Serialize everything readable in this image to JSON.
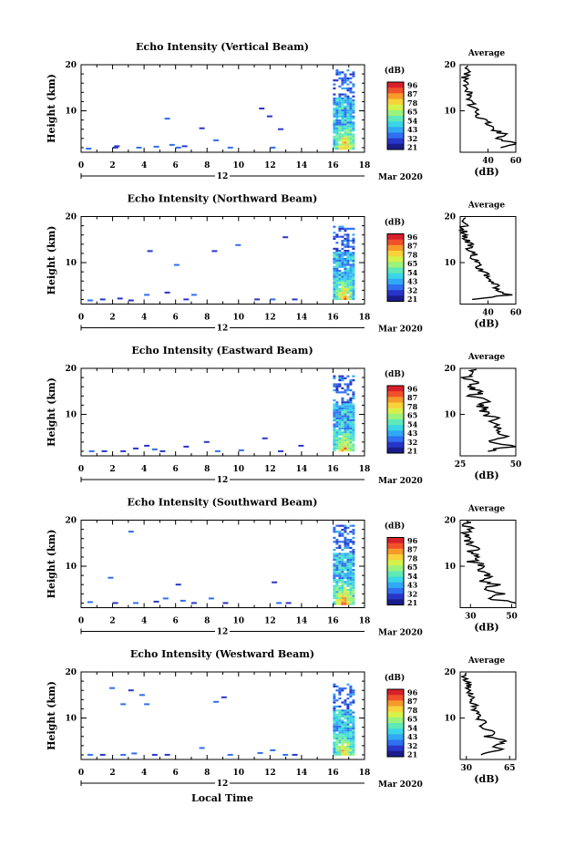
{
  "figure": {
    "xlabel": "Local Time",
    "colors": {
      "colormap": [
        "#1a1d8c",
        "#2736c9",
        "#2f6ff0",
        "#30a8f5",
        "#38d6e6",
        "#5fe9b8",
        "#9bf27d",
        "#d6f24a",
        "#f7d23a",
        "#f79a2a",
        "#f0502a",
        "#d8202a"
      ]
    }
  },
  "chart_data": [
    {
      "type": "heatmap",
      "title": "Echo Intensity (Vertical Beam)",
      "ylabel": "Height (km)",
      "xlim": [
        0,
        18
      ],
      "ylim": [
        1,
        20
      ],
      "xticks": [
        "0",
        "2",
        "4",
        "6",
        "8",
        "10",
        "12",
        "14",
        "16",
        "18"
      ],
      "yticks": [
        {
          "v": 20,
          "label": "20"
        },
        {
          "v": 10,
          "label": "10"
        }
      ],
      "date_label": "12",
      "month_label": "Mar 2020",
      "colorbar": {
        "unit": "(dB)",
        "labels": [
          "96",
          "87",
          "78",
          "65",
          "54",
          "43",
          "32",
          "21"
        ]
      },
      "data_block": {
        "x": [
          16.0,
          17.3
        ],
        "y": [
          2.0,
          19.0
        ]
      },
      "scatter_echoes": [
        [
          0.3,
          1.8
        ],
        [
          2.0,
          2.0
        ],
        [
          2.1,
          2.3
        ],
        [
          3.5,
          2.0
        ],
        [
          4.6,
          2.2
        ],
        [
          5.3,
          8.3
        ],
        [
          5.6,
          2.6
        ],
        [
          6.0,
          2.0
        ],
        [
          6.4,
          2.3
        ],
        [
          7.5,
          6.2
        ],
        [
          8.4,
          3.6
        ],
        [
          9.3,
          2.0
        ],
        [
          11.3,
          10.5
        ],
        [
          11.8,
          8.8
        ],
        [
          12.0,
          2.0
        ],
        [
          12.5,
          6.0
        ]
      ],
      "profile": {
        "title": "Average",
        "xlabel": "(dB)",
        "xlim": [
          20,
          60
        ],
        "ylim": [
          1,
          20
        ],
        "xticks": [
          {
            "v": 40,
            "label": "40"
          },
          {
            "v": 60,
            "label": "60"
          }
        ],
        "yticks": [
          {
            "v": 20,
            "label": "20"
          },
          {
            "v": 10,
            "label": "10"
          }
        ],
        "heights": [
          2.0,
          3.0,
          4.0,
          5.0,
          6.0,
          7.0,
          8.0,
          9.0,
          10.0,
          11.0,
          12.0,
          13.0,
          14.0,
          15.0,
          16.0,
          17.0,
          18.0,
          19.0,
          20.0
        ],
        "values": [
          52,
          58,
          46,
          51,
          43,
          40,
          38,
          30,
          32,
          27,
          29,
          25,
          27,
          24,
          26,
          23,
          25,
          24,
          27
        ]
      }
    },
    {
      "type": "heatmap",
      "title": "Echo Intensity (Northward Beam)",
      "ylabel": "Height (km)",
      "xlim": [
        0,
        18
      ],
      "ylim": [
        1,
        20
      ],
      "xticks": [
        "0",
        "2",
        "4",
        "6",
        "8",
        "10",
        "12",
        "14",
        "16",
        "18"
      ],
      "yticks": [
        {
          "v": 20,
          "label": "20"
        },
        {
          "v": 10,
          "label": "10"
        }
      ],
      "date_label": "12",
      "month_label": "Mar 2020",
      "colorbar": {
        "unit": "(dB)",
        "labels": [
          "96",
          "87",
          "78",
          "65",
          "54",
          "43",
          "32",
          "21"
        ]
      },
      "data_block": {
        "x": [
          16.0,
          17.3
        ],
        "y": [
          2.0,
          18.0
        ]
      },
      "scatter_echoes": [
        [
          0.4,
          1.8
        ],
        [
          1.2,
          2.0
        ],
        [
          2.3,
          2.2
        ],
        [
          3.0,
          1.8
        ],
        [
          4.0,
          3.0
        ],
        [
          4.2,
          12.5
        ],
        [
          5.3,
          3.5
        ],
        [
          5.9,
          9.5
        ],
        [
          6.5,
          2.0
        ],
        [
          7.0,
          3.0
        ],
        [
          8.3,
          12.5
        ],
        [
          9.8,
          13.8
        ],
        [
          11.0,
          2.0
        ],
        [
          12.0,
          2.0
        ],
        [
          12.8,
          15.5
        ],
        [
          13.4,
          2.0
        ]
      ],
      "profile": {
        "title": "Average",
        "xlabel": "(dB)",
        "xlim": [
          20,
          60
        ],
        "ylim": [
          1,
          20
        ],
        "xticks": [
          {
            "v": 40,
            "label": "40"
          },
          {
            "v": 60,
            "label": "60"
          }
        ],
        "yticks": [
          {
            "v": 20,
            "label": "20"
          },
          {
            "v": 10,
            "label": "10"
          }
        ],
        "heights": [
          2.0,
          3.0,
          4.0,
          5.0,
          6.0,
          7.0,
          8.0,
          9.0,
          10.0,
          11.0,
          12.0,
          13.0,
          14.0,
          15.0,
          16.0,
          17.0,
          18.0,
          19.0,
          20.0
        ],
        "values": [
          30,
          55,
          44,
          48,
          40,
          41,
          36,
          33,
          32,
          30,
          31,
          27,
          27,
          25,
          24,
          22,
          23,
          22,
          24
        ]
      }
    },
    {
      "type": "heatmap",
      "title": "Echo Intensity (Eastward Beam)",
      "ylabel": "Height (km)",
      "xlim": [
        0,
        18
      ],
      "ylim": [
        1,
        20
      ],
      "xticks": [
        "0",
        "2",
        "4",
        "6",
        "8",
        "10",
        "12",
        "14",
        "16",
        "18"
      ],
      "yticks": [
        {
          "v": 20,
          "label": "20"
        },
        {
          "v": 10,
          "label": "10"
        }
      ],
      "date_label": "12",
      "month_label": "Mar 2020",
      "colorbar": {
        "unit": "(dB)",
        "labels": [
          "96",
          "87",
          "78",
          "65",
          "54",
          "43",
          "32",
          "21"
        ]
      },
      "data_block": {
        "x": [
          16.0,
          17.3
        ],
        "y": [
          2.0,
          18.5
        ]
      },
      "scatter_echoes": [
        [
          0.5,
          2.0
        ],
        [
          1.3,
          2.0
        ],
        [
          2.5,
          2.0
        ],
        [
          3.3,
          2.6
        ],
        [
          4.0,
          3.2
        ],
        [
          4.5,
          2.4
        ],
        [
          5.0,
          2.0
        ],
        [
          6.5,
          3.0
        ],
        [
          7.8,
          4.0
        ],
        [
          8.5,
          2.0
        ],
        [
          10.0,
          2.2
        ],
        [
          11.5,
          4.8
        ],
        [
          12.5,
          2.0
        ],
        [
          13.8,
          3.2
        ]
      ],
      "profile": {
        "title": "Average",
        "xlabel": "(dB)",
        "xlim": [
          25,
          50
        ],
        "ylim": [
          1,
          20
        ],
        "xticks": [
          {
            "v": 25,
            "label": "25"
          },
          {
            "v": 50,
            "label": "50"
          }
        ],
        "yticks": [
          {
            "v": 20,
            "label": "20"
          },
          {
            "v": 10,
            "label": "10"
          }
        ],
        "heights": [
          2.0,
          3.0,
          4.0,
          5.0,
          6.0,
          7.0,
          8.0,
          9.0,
          10.0,
          11.0,
          12.0,
          13.0,
          14.0,
          15.0,
          16.0,
          17.0,
          18.0,
          19.0,
          20.0
        ],
        "values": [
          36,
          49,
          38,
          46,
          40,
          43,
          39,
          42,
          35,
          37,
          34,
          36,
          31,
          35,
          29,
          33,
          28,
          31,
          30
        ]
      }
    },
    {
      "type": "heatmap",
      "title": "Echo Intensity (Southward Beam)",
      "ylabel": "Height (km)",
      "xlim": [
        0,
        18
      ],
      "ylim": [
        1,
        20
      ],
      "xticks": [
        "0",
        "2",
        "4",
        "6",
        "8",
        "10",
        "12",
        "14",
        "16",
        "18"
      ],
      "yticks": [
        {
          "v": 20,
          "label": "20"
        },
        {
          "v": 10,
          "label": "10"
        }
      ],
      "date_label": "12",
      "month_label": "Mar 2020",
      "colorbar": {
        "unit": "(dB)",
        "labels": [
          "96",
          "87",
          "78",
          "65",
          "54",
          "43",
          "32",
          "21"
        ]
      },
      "data_block": {
        "x": [
          16.0,
          17.3
        ],
        "y": [
          2.0,
          19.0
        ]
      },
      "scatter_echoes": [
        [
          0.4,
          2.2
        ],
        [
          1.7,
          7.5
        ],
        [
          2.0,
          2.0
        ],
        [
          3.0,
          17.5
        ],
        [
          3.3,
          2.0
        ],
        [
          4.6,
          2.3
        ],
        [
          5.2,
          3.0
        ],
        [
          6.0,
          6.0
        ],
        [
          6.3,
          2.5
        ],
        [
          7.0,
          2.0
        ],
        [
          8.1,
          3.0
        ],
        [
          9.0,
          2.0
        ],
        [
          12.1,
          6.5
        ],
        [
          12.4,
          2.0
        ],
        [
          13.0,
          2.0
        ]
      ],
      "profile": {
        "title": "Average",
        "xlabel": "(dB)",
        "xlim": [
          25,
          52
        ],
        "ylim": [
          1,
          20
        ],
        "xticks": [
          {
            "v": 30,
            "label": "30"
          },
          {
            "v": 50,
            "label": "50"
          }
        ],
        "yticks": [
          {
            "v": 20,
            "label": "20"
          },
          {
            "v": 10,
            "label": "10"
          }
        ],
        "heights": [
          2.0,
          3.0,
          4.0,
          5.0,
          6.0,
          7.0,
          8.0,
          9.0,
          10.0,
          11.0,
          12.0,
          13.0,
          14.0,
          15.0,
          16.0,
          17.0,
          18.0,
          19.0,
          20.0
        ],
        "values": [
          52,
          40,
          46,
          38,
          42,
          35,
          39,
          33,
          37,
          31,
          34,
          30,
          33,
          28,
          31,
          28,
          29,
          27,
          28
        ]
      }
    },
    {
      "type": "heatmap",
      "title": "Echo Intensity (Westward Beam)",
      "ylabel": "Height (km)",
      "xlim": [
        0,
        18
      ],
      "ylim": [
        1,
        20
      ],
      "xticks": [
        "0",
        "2",
        "4",
        "6",
        "8",
        "10",
        "12",
        "14",
        "16",
        "18"
      ],
      "yticks": [
        {
          "v": 20,
          "label": "20"
        },
        {
          "v": 10,
          "label": "10"
        }
      ],
      "date_label": "12",
      "month_label": "Mar 2020",
      "colorbar": {
        "unit": "(dB)",
        "labels": [
          "96",
          "87",
          "78",
          "65",
          "54",
          "43",
          "32",
          "21"
        ]
      },
      "data_block": {
        "x": [
          16.0,
          17.3
        ],
        "y": [
          2.0,
          17.5
        ]
      },
      "scatter_echoes": [
        [
          0.4,
          2.0
        ],
        [
          1.2,
          2.0
        ],
        [
          1.8,
          16.5
        ],
        [
          2.5,
          2.0
        ],
        [
          2.5,
          13.0
        ],
        [
          3.0,
          16.0
        ],
        [
          3.2,
          2.3
        ],
        [
          3.7,
          15.0
        ],
        [
          4.0,
          13.0
        ],
        [
          4.5,
          2.0
        ],
        [
          5.3,
          2.0
        ],
        [
          7.5,
          3.5
        ],
        [
          8.4,
          13.5
        ],
        [
          8.9,
          14.5
        ],
        [
          9.3,
          2.0
        ],
        [
          11.2,
          2.4
        ],
        [
          12.0,
          3.0
        ],
        [
          12.8,
          2.0
        ],
        [
          13.4,
          2.0
        ]
      ],
      "profile": {
        "title": "Average",
        "xlabel": "(dB)",
        "xlim": [
          25,
          70
        ],
        "ylim": [
          1,
          20
        ],
        "xticks": [
          {
            "v": 30,
            "label": "30"
          },
          {
            "v": 65,
            "label": "65"
          }
        ],
        "yticks": [
          {
            "v": 20,
            "label": "20"
          },
          {
            "v": 10,
            "label": "10"
          }
        ],
        "heights": [
          2.0,
          3.0,
          4.0,
          5.0,
          6.0,
          7.0,
          8.0,
          9.0,
          10.0,
          11.0,
          12.0,
          13.0,
          14.0,
          15.0,
          16.0,
          17.0,
          18.0,
          19.0,
          20.0
        ],
        "values": [
          40,
          58,
          52,
          62,
          46,
          55,
          42,
          46,
          38,
          40,
          35,
          37,
          33,
          34,
          31,
          32,
          30,
          29,
          28
        ]
      }
    }
  ]
}
